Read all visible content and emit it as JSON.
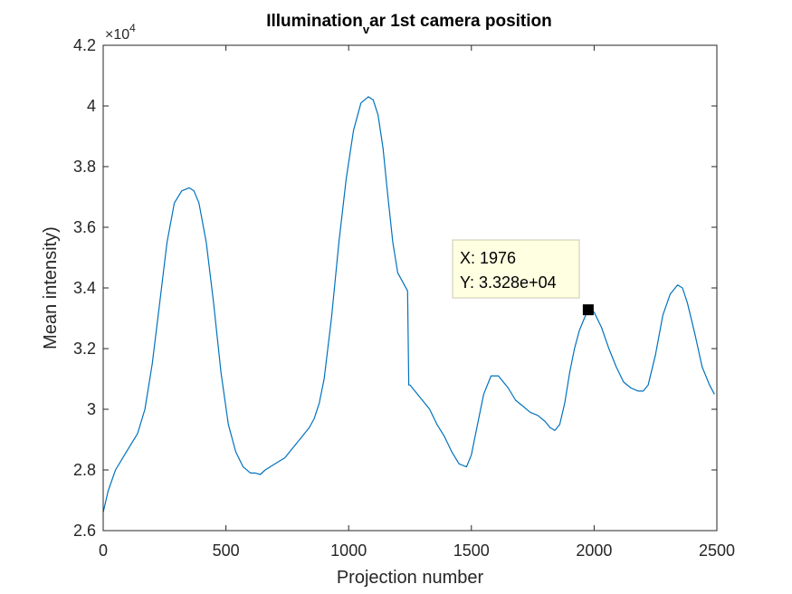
{
  "chart_data": {
    "type": "line",
    "title": {
      "main": "Illumination",
      "subscript": "v",
      "rest": "ar 1st camera position"
    },
    "xlabel": "Projection number",
    "ylabel": "Mean intensity)",
    "xlim": [
      0,
      2500
    ],
    "ylim": [
      26000,
      42000
    ],
    "xticks": [
      0,
      500,
      1000,
      1500,
      2000,
      2500
    ],
    "yticks": [
      26000,
      28000,
      30000,
      32000,
      34000,
      36000,
      38000,
      40000,
      42000
    ],
    "ytick_labels": [
      "2.6",
      "2.8",
      "3",
      "3.2",
      "3.4",
      "3.6",
      "3.8",
      "4",
      "4.2"
    ],
    "y_exponent": {
      "base": "×10",
      "power": "4"
    },
    "grid": false,
    "line_color": "#0072BD",
    "series": [
      {
        "x": [
          0,
          20,
          50,
          80,
          110,
          140,
          170,
          200,
          230,
          260,
          290,
          320,
          350,
          370,
          390,
          420,
          450,
          480,
          510,
          540,
          570,
          600,
          620,
          640,
          660,
          680,
          700,
          720,
          740,
          760,
          780,
          800,
          820,
          840,
          860,
          880,
          900,
          930,
          960,
          990,
          1020,
          1050,
          1080,
          1100,
          1120,
          1140,
          1160,
          1180,
          1200,
          1220,
          1240,
          1245,
          1250,
          1270,
          1300,
          1330,
          1360,
          1390,
          1420,
          1450,
          1480,
          1500,
          1520,
          1550,
          1580,
          1610,
          1630,
          1650,
          1680,
          1710,
          1740,
          1770,
          1800,
          1820,
          1840,
          1860,
          1880,
          1900,
          1920,
          1940,
          1960,
          1976,
          2000,
          2030,
          2060,
          2090,
          2120,
          2150,
          2180,
          2200,
          2220,
          2250,
          2280,
          2310,
          2340,
          2360,
          2380,
          2410,
          2440,
          2470,
          2490
        ],
        "y": [
          26600,
          27300,
          28000,
          28400,
          28800,
          29200,
          30000,
          31500,
          33500,
          35500,
          36800,
          37200,
          37300,
          37200,
          36800,
          35500,
          33500,
          31200,
          29500,
          28600,
          28100,
          27900,
          27900,
          27850,
          28000,
          28100,
          28200,
          28300,
          28400,
          28600,
          28800,
          29000,
          29200,
          29400,
          29700,
          30200,
          31000,
          33000,
          35500,
          37600,
          39200,
          40100,
          40300,
          40200,
          39700,
          38600,
          37000,
          35500,
          34500,
          34200,
          33900,
          30800,
          30800,
          30600,
          30300,
          30000,
          29500,
          29100,
          28600,
          28200,
          28100,
          28500,
          29300,
          30500,
          31100,
          31100,
          30900,
          30700,
          30300,
          30100,
          29900,
          29800,
          29600,
          29400,
          29300,
          29500,
          30200,
          31200,
          32000,
          32600,
          33000,
          33280,
          33200,
          32700,
          32000,
          31400,
          30900,
          30700,
          30600,
          30600,
          30800,
          31800,
          33100,
          33800,
          34100,
          34000,
          33500,
          32500,
          31400,
          30800,
          30500
        ]
      }
    ],
    "datatip": {
      "x": 1976,
      "y": 33280,
      "x_text": "X: 1976",
      "y_text": "Y: 3.328e+04"
    }
  }
}
